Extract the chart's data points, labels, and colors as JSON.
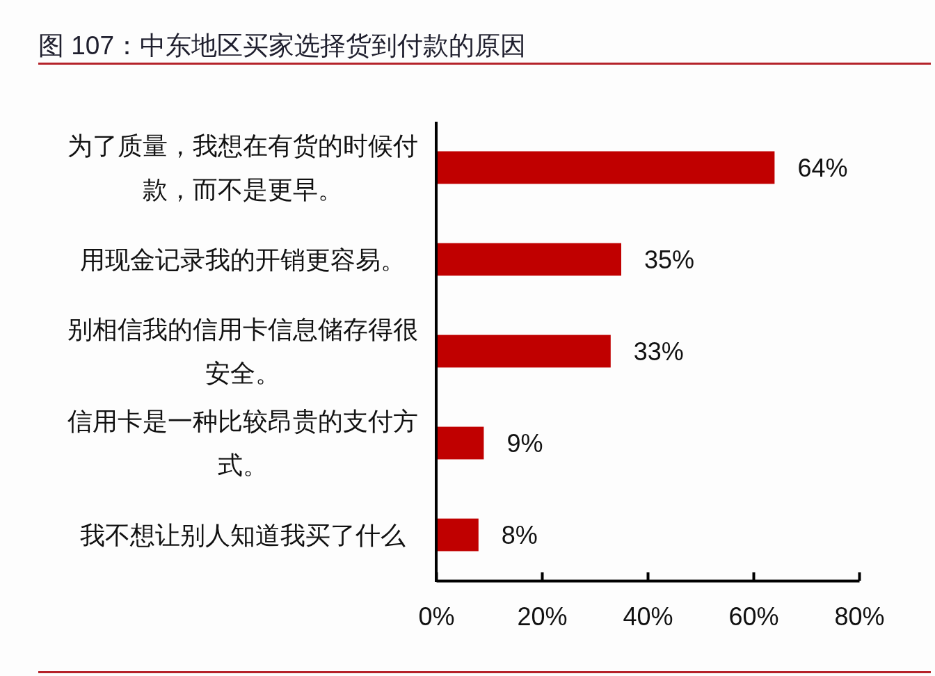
{
  "chart_data": {
    "type": "bar",
    "orientation": "horizontal",
    "title": "图 107：中东地区买家选择货到付款的原因",
    "categories": [
      "为了质量，我想在有货的时候付款，而不是更早。",
      "用现金记录我的开销更容易。",
      "别相信我的信用卡信息储存得很安全。",
      "信用卡是一种比较昂贵的支付方式。",
      "我不想让别人知道我买了什么"
    ],
    "values": [
      64,
      35,
      33,
      9,
      8
    ],
    "color": "#c00000",
    "value_labels": [
      "64%",
      "35%",
      "33%",
      "9%",
      "8%"
    ],
    "xlim": [
      0,
      80
    ],
    "xticks": [
      {
        "value": 0,
        "label": "0%"
      },
      {
        "value": 20,
        "label": "20%"
      },
      {
        "value": 40,
        "label": "40%"
      },
      {
        "value": 60,
        "label": "60%"
      },
      {
        "value": 80,
        "label": "80%"
      }
    ]
  }
}
